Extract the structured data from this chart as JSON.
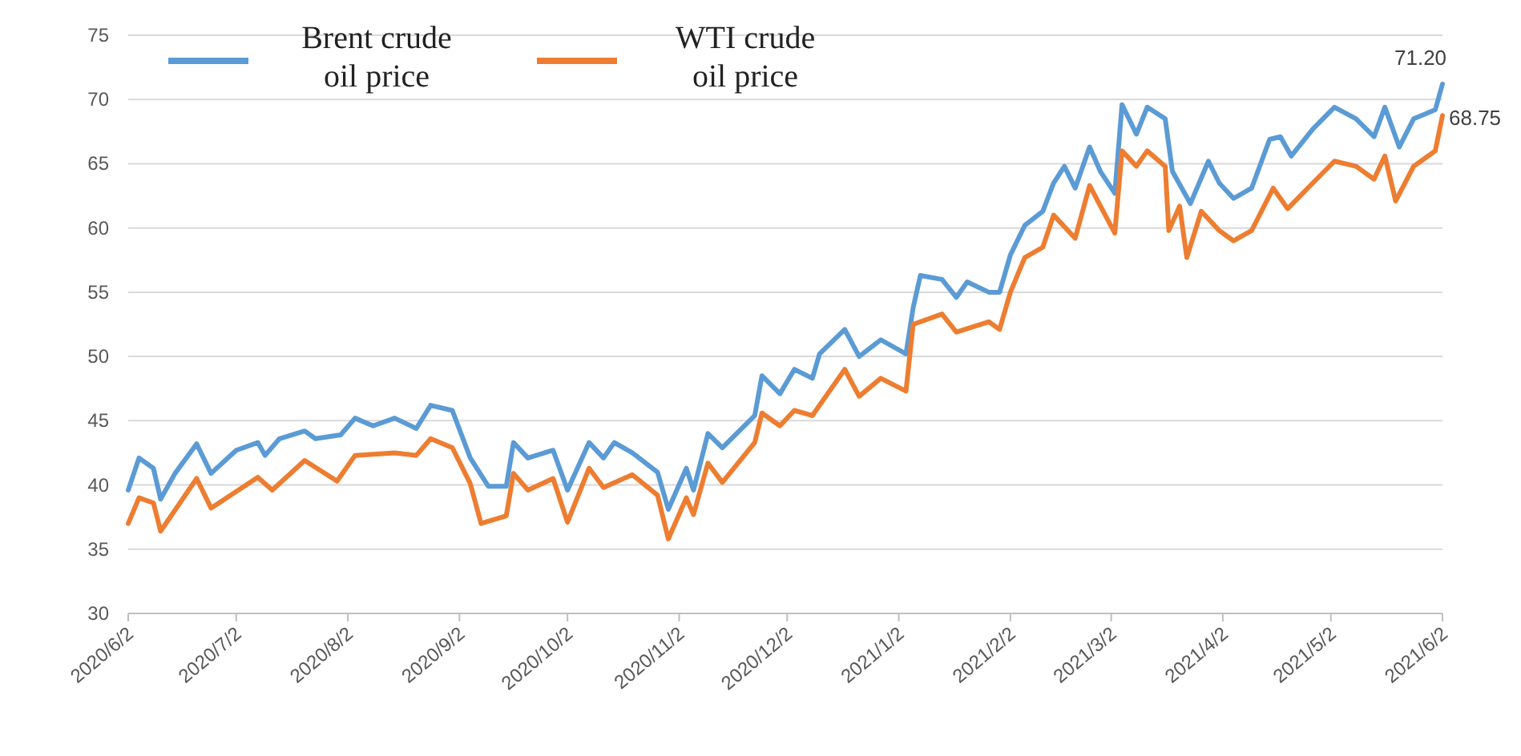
{
  "chart_data": {
    "type": "line",
    "x": [
      "2020-06-02",
      "2020-06-05",
      "2020-06-09",
      "2020-06-11",
      "2020-06-15",
      "2020-06-21",
      "2020-06-25",
      "2020-07-02",
      "2020-07-08",
      "2020-07-10",
      "2020-07-14",
      "2020-07-21",
      "2020-07-24",
      "2020-07-31",
      "2020-08-04",
      "2020-08-09",
      "2020-08-15",
      "2020-08-21",
      "2020-08-25",
      "2020-08-31",
      "2020-09-05",
      "2020-09-10",
      "2020-09-15",
      "2020-09-17",
      "2020-09-21",
      "2020-09-28",
      "2020-10-02",
      "2020-10-08",
      "2020-10-12",
      "2020-10-15",
      "2020-10-20",
      "2020-10-27",
      "2020-10-30",
      "2020-11-04",
      "2020-11-06",
      "2020-11-10",
      "2020-11-14",
      "2020-11-23",
      "2020-11-25",
      "2020-11-30",
      "2020-12-04",
      "2020-12-09",
      "2020-12-11",
      "2020-12-18",
      "2020-12-22",
      "2020-12-28",
      "2021-01-04",
      "2021-01-06",
      "2021-01-08",
      "2021-01-14",
      "2021-01-18",
      "2021-01-21",
      "2021-01-27",
      "2021-01-30",
      "2021-02-02",
      "2021-02-06",
      "2021-02-11",
      "2021-02-14",
      "2021-02-17",
      "2021-02-20",
      "2021-02-24",
      "2021-02-27",
      "2021-03-03",
      "2021-03-05",
      "2021-03-09",
      "2021-03-12",
      "2021-03-17",
      "2021-03-19",
      "2021-03-24",
      "2021-03-29",
      "2021-04-01",
      "2021-04-05",
      "2021-04-10",
      "2021-04-15",
      "2021-04-18",
      "2021-04-21",
      "2021-04-27",
      "2021-05-03",
      "2021-05-09",
      "2021-05-14",
      "2021-05-17",
      "2021-05-21",
      "2021-05-25",
      "2021-05-31",
      "2021-06-02"
    ],
    "series": [
      {
        "name": "Brent crude oil price",
        "color": "#5b9bd5",
        "values": [
          39.6,
          42.1,
          41.3,
          38.9,
          40.9,
          43.2,
          40.9,
          42.7,
          43.3,
          42.3,
          43.6,
          44.2,
          43.6,
          43.9,
          45.2,
          44.6,
          45.2,
          44.4,
          46.2,
          45.8,
          42.1,
          39.9,
          39.9,
          43.3,
          42.1,
          42.7,
          39.6,
          43.3,
          42.1,
          43.3,
          42.5,
          41,
          38.1,
          41.3,
          39.6,
          44,
          42.9,
          45.4,
          48.5,
          47.1,
          49,
          48.3,
          50.2,
          52.1,
          50,
          51.3,
          50.2,
          53.8,
          56.3,
          56,
          54.6,
          55.8,
          55,
          55,
          57.9,
          60.2,
          61.3,
          63.5,
          64.8,
          63.1,
          66.3,
          64.4,
          62.7,
          69.6,
          67.3,
          69.4,
          68.5,
          64.4,
          61.9,
          65.2,
          63.5,
          62.3,
          63.1,
          66.9,
          67.1,
          65.6,
          67.7,
          69.4,
          68.5,
          67.1,
          69.4,
          66.3,
          68.5,
          69.2,
          71.2
        ]
      },
      {
        "name": "WTI crude oil price",
        "color": "#ed7d31",
        "x": [
          "2020-06-02",
          "2020-06-05",
          "2020-06-09",
          "2020-06-11",
          "2020-06-21",
          "2020-06-25",
          "2020-07-08",
          "2020-07-12",
          "2020-07-21",
          "2020-07-30",
          "2020-08-04",
          "2020-08-15",
          "2020-08-21",
          "2020-08-25",
          "2020-08-31",
          "2020-09-05",
          "2020-09-08",
          "2020-09-15",
          "2020-09-17",
          "2020-09-21",
          "2020-09-28",
          "2020-10-02",
          "2020-10-08",
          "2020-10-12",
          "2020-10-20",
          "2020-10-27",
          "2020-10-30",
          "2020-11-04",
          "2020-11-06",
          "2020-11-10",
          "2020-11-14",
          "2020-11-23",
          "2020-11-25",
          "2020-11-30",
          "2020-12-04",
          "2020-12-09",
          "2020-12-18",
          "2020-12-22",
          "2020-12-28",
          "2021-01-04",
          "2021-01-06",
          "2021-01-14",
          "2021-01-18",
          "2021-01-27",
          "2021-01-30",
          "2021-02-02",
          "2021-02-06",
          "2021-02-11",
          "2021-02-14",
          "2021-02-20",
          "2021-02-24",
          "2021-03-03",
          "2021-03-05",
          "2021-03-09",
          "2021-03-12",
          "2021-03-17",
          "2021-03-18",
          "2021-03-21",
          "2021-03-23",
          "2021-03-27",
          "2021-04-01",
          "2021-04-05",
          "2021-04-10",
          "2021-04-16",
          "2021-04-20",
          "2021-04-27",
          "2021-05-03",
          "2021-05-09",
          "2021-05-14",
          "2021-05-17",
          "2021-05-20",
          "2021-05-25",
          "2021-05-31",
          "2021-06-02"
        ],
        "values": [
          37,
          39,
          38.6,
          36.4,
          40.5,
          38.2,
          40.6,
          39.6,
          41.9,
          40.3,
          42.3,
          42.5,
          42.3,
          43.6,
          42.9,
          40.1,
          37,
          37.6,
          40.9,
          39.6,
          40.5,
          37.1,
          41.3,
          39.8,
          40.8,
          39.2,
          35.8,
          39,
          37.7,
          41.7,
          40.2,
          43.3,
          45.6,
          44.6,
          45.8,
          45.4,
          49,
          46.9,
          48.3,
          47.3,
          52.5,
          53.3,
          51.9,
          52.7,
          52.1,
          55,
          57.7,
          58.5,
          61,
          59.2,
          63.3,
          59.6,
          66,
          64.8,
          66,
          64.8,
          59.8,
          61.7,
          57.7,
          61.3,
          59.8,
          59,
          59.8,
          63.1,
          61.5,
          63.5,
          65.2,
          64.8,
          63.8,
          65.6,
          62.1,
          64.8,
          66,
          68.75
        ]
      }
    ],
    "xlim": [
      "2020-06-02",
      "2021-06-02"
    ],
    "xticks": [
      {
        "value": "2020-06-02",
        "label": "2020/6/2"
      },
      {
        "value": "2020-07-02",
        "label": "2020/7/2"
      },
      {
        "value": "2020-08-02",
        "label": "2020/8/2"
      },
      {
        "value": "2020-09-02",
        "label": "2020/9/2"
      },
      {
        "value": "2020-10-02",
        "label": "2020/10/2"
      },
      {
        "value": "2020-11-02",
        "label": "2020/11/2"
      },
      {
        "value": "2020-12-02",
        "label": "2020/12/2"
      },
      {
        "value": "2021-01-02",
        "label": "2021/1/2"
      },
      {
        "value": "2021-02-02",
        "label": "2021/2/2"
      },
      {
        "value": "2021-03-02",
        "label": "2021/3/2"
      },
      {
        "value": "2021-04-02",
        "label": "2021/4/2"
      },
      {
        "value": "2021-05-02",
        "label": "2021/5/2"
      },
      {
        "value": "2021-06-02",
        "label": "2021/6/2"
      }
    ],
    "ylim": [
      30,
      75
    ],
    "yticks": [
      30,
      35,
      40,
      45,
      50,
      55,
      60,
      65,
      70,
      75
    ],
    "grid": "y",
    "legend": "top left",
    "marker": "none",
    "line_style": "solid",
    "annotations": [
      {
        "text": "71.20",
        "x": "2021-06-02",
        "y": 71.2
      },
      {
        "text": "68.75",
        "x": "2021-06-02",
        "y": 68.75
      }
    ]
  }
}
